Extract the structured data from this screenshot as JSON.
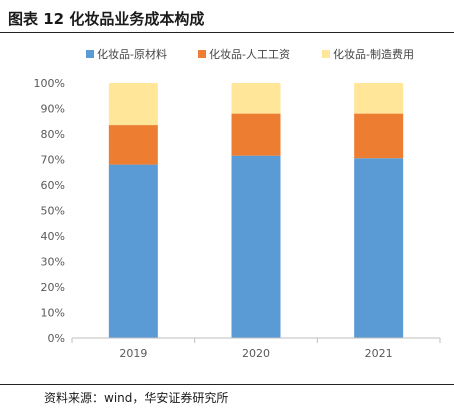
{
  "figure": {
    "title": "图表 12  化妆品业务成本构成",
    "source": "资料来源：wind，华安证券研究所"
  },
  "chart_data": {
    "type": "bar",
    "stacked": true,
    "categories": [
      "2019",
      "2020",
      "2021"
    ],
    "series": [
      {
        "name": "化妆品-原材料",
        "color": "#5b9bd5",
        "values": [
          68,
          71.5,
          70.5
        ]
      },
      {
        "name": "化妆品-人工工资",
        "color": "#ed7d31",
        "values": [
          15.5,
          16.5,
          17.5
        ]
      },
      {
        "name": "化妆品-制造费用",
        "color": "#ffe699",
        "values": [
          16.5,
          12,
          12
        ]
      }
    ],
    "yticks": [
      "0%",
      "10%",
      "20%",
      "30%",
      "40%",
      "50%",
      "60%",
      "70%",
      "80%",
      "90%",
      "100%"
    ],
    "ylim": [
      0,
      100
    ],
    "legend_position": "top",
    "grid": false
  }
}
